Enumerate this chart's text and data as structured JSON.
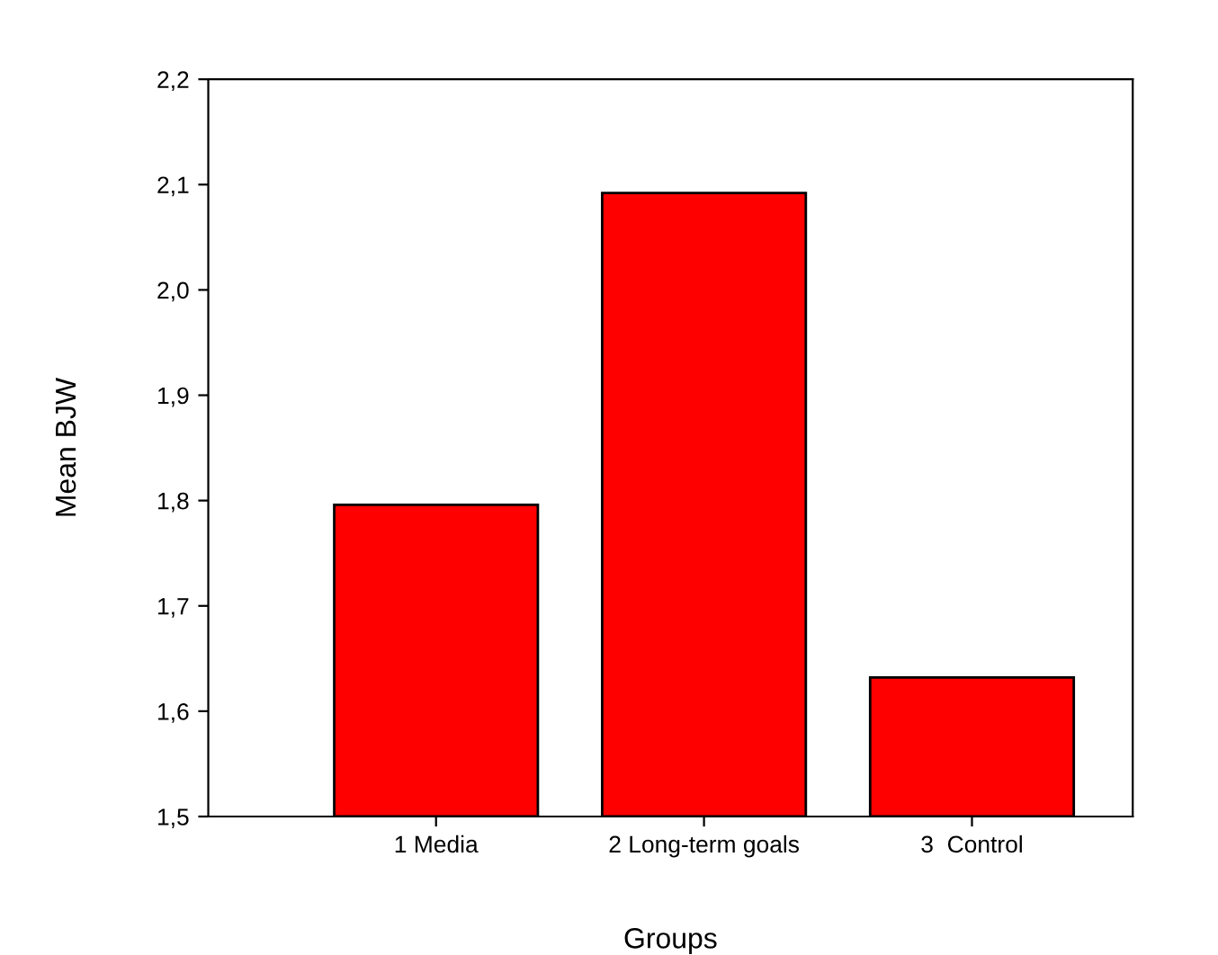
{
  "chart_data": {
    "type": "bar",
    "xlabel": "Groups",
    "ylabel": "Mean BJW",
    "categories": [
      "1 Media",
      "2 Long-term goals",
      "3  Control"
    ],
    "values": [
      1.796,
      2.092,
      1.632
    ],
    "color": "#ff0000",
    "ylim": [
      1.5,
      2.2
    ],
    "yticks": [
      {
        "value": 1.5,
        "label": "1,5"
      },
      {
        "value": 1.6,
        "label": "1,6"
      },
      {
        "value": 1.7,
        "label": "1,7"
      },
      {
        "value": 1.8,
        "label": "1,8"
      },
      {
        "value": 1.9,
        "label": "1,9"
      },
      {
        "value": 2.0,
        "label": "2,0"
      },
      {
        "value": 2.1,
        "label": "2,1"
      },
      {
        "value": 2.2,
        "label": "2,2"
      }
    ],
    "grid": false
  }
}
